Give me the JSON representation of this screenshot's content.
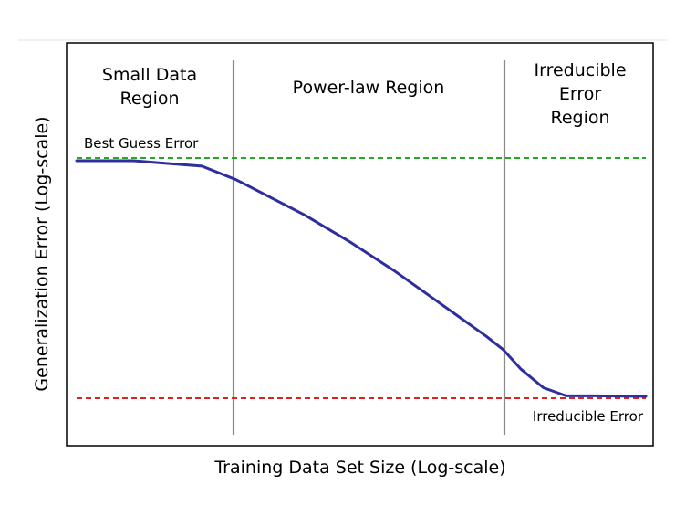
{
  "chart_data": {
    "type": "line",
    "title": "",
    "xlabel": "Training Data Set Size (Log-scale)",
    "ylabel": "Generalization Error (Log-scale)",
    "x_scale": "log",
    "y_scale": "log",
    "ticks": "none",
    "grid": false,
    "regions": [
      {
        "label": "Small Data\nRegion"
      },
      {
        "label": "Power-law Region"
      },
      {
        "label": "Irreducible\nError\nRegion"
      }
    ],
    "reference_lines": [
      {
        "label": "Best Guess Error",
        "color": "#22aa22",
        "style": "dashed"
      },
      {
        "label": "Irreducible Error",
        "color": "#dd2222",
        "style": "dashed"
      }
    ],
    "series": [
      {
        "color": "#2e2e9e",
        "x": [
          0.0,
          0.1,
          0.16,
          0.22,
          0.28,
          0.4,
          0.48,
          0.56,
          0.64,
          0.72,
          0.75,
          0.78,
          0.82,
          0.86,
          0.91,
          1.0
        ],
        "y": [
          1.0,
          1.0,
          0.99,
          0.98,
          0.93,
          0.8,
          0.7,
          0.59,
          0.47,
          0.35,
          0.3,
          0.23,
          0.16,
          0.13,
          0.13,
          0.128
        ]
      }
    ]
  }
}
